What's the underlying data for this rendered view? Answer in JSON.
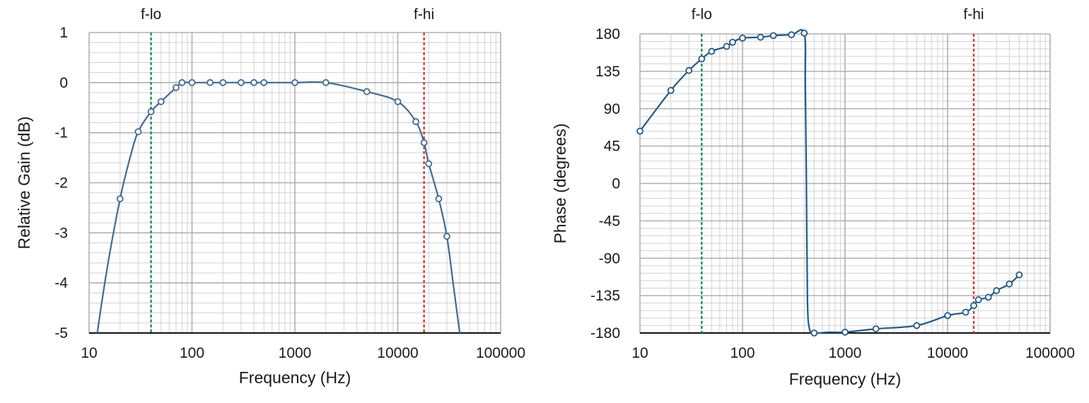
{
  "chart_data": [
    {
      "type": "line",
      "xlabel": "Frequency (Hz)",
      "ylabel": "Relative Gain (dB)",
      "xscale": "log",
      "xlim": [
        10,
        100000
      ],
      "ylim": [
        -5,
        1
      ],
      "xticks": [
        "10",
        "100",
        "1000",
        "10000",
        "100000"
      ],
      "yticks": [
        "1",
        "0",
        "-1",
        "-2",
        "-3",
        "-4",
        "-5"
      ],
      "ytick_values": [
        1,
        0,
        -1,
        -2,
        -3,
        -4,
        -5
      ],
      "grid": true,
      "line_color": "#3f6b96",
      "markers": [
        {
          "label": "f-lo",
          "x": 40,
          "color": "#1a8f5a"
        },
        {
          "label": "f-hi",
          "x": 18000,
          "color": "#e0352b"
        }
      ],
      "curve": {
        "x": [
          12,
          15,
          20,
          25,
          30,
          40,
          50,
          70,
          80,
          100,
          150,
          200,
          300,
          400,
          500,
          1000,
          2000,
          5000,
          10000,
          15000,
          18000,
          20000,
          25000,
          30000,
          35000,
          40000
        ],
        "y": [
          -5.0,
          -3.7,
          -2.32,
          -1.5,
          -0.98,
          -0.58,
          -0.38,
          -0.1,
          0.0,
          0.0,
          0.0,
          0.0,
          0.0,
          0.0,
          0.0,
          0.0,
          0.0,
          -0.18,
          -0.38,
          -0.78,
          -1.2,
          -1.62,
          -2.32,
          -3.07,
          -4.1,
          -5.0
        ]
      },
      "points": {
        "x": [
          20,
          30,
          40,
          50,
          70,
          80,
          100,
          150,
          200,
          300,
          400,
          500,
          1000,
          2000,
          5000,
          10000,
          15000,
          18000,
          20000,
          25000,
          30000
        ],
        "y": [
          -2.32,
          -0.98,
          -0.58,
          -0.38,
          -0.1,
          0.0,
          0.0,
          0.0,
          0.0,
          0.0,
          0.0,
          0.0,
          0.0,
          0.0,
          -0.18,
          -0.38,
          -0.78,
          -1.2,
          -1.62,
          -2.32,
          -3.07
        ]
      }
    },
    {
      "type": "line",
      "xlabel": "Frequency (Hz)",
      "ylabel": "Phase (degrees)",
      "xscale": "log",
      "xlim": [
        10,
        100000
      ],
      "ylim": [
        -180,
        180
      ],
      "xticks": [
        "10",
        "100",
        "1000",
        "10000",
        "100000"
      ],
      "yticks": [
        "180",
        "135",
        "90",
        "45",
        "0",
        "-45",
        "-90",
        "-135",
        "-180"
      ],
      "ytick_values": [
        180,
        135,
        90,
        45,
        0,
        -45,
        -90,
        -135,
        -180
      ],
      "grid": true,
      "line_color": "#1f5a8a",
      "markers": [
        {
          "label": "f-lo",
          "x": 40,
          "color": "#1a8f5a"
        },
        {
          "label": "f-hi",
          "x": 18000,
          "color": "#e0352b"
        }
      ],
      "curve": {
        "x": [
          10,
          20,
          30,
          40,
          50,
          70,
          80,
          100,
          150,
          200,
          300,
          400,
          410,
          420,
          430,
          450,
          500,
          700,
          1000,
          2000,
          5000,
          10000,
          15000,
          18000,
          20000,
          25000,
          30000,
          40000,
          50000
        ],
        "y": [
          63,
          112,
          136,
          150,
          159,
          165,
          170,
          175,
          176,
          178,
          179,
          181,
          120,
          0,
          -140,
          -175,
          -180,
          -179,
          -179,
          -175,
          -171,
          -159,
          -155,
          -147,
          -140,
          -137,
          -129,
          -121,
          -110
        ]
      },
      "points": {
        "x": [
          10,
          20,
          30,
          40,
          50,
          70,
          80,
          100,
          150,
          200,
          300,
          400,
          500,
          1000,
          2000,
          5000,
          10000,
          15000,
          18000,
          20000,
          25000,
          30000,
          40000,
          50000
        ],
        "y": [
          63,
          112,
          136,
          150,
          159,
          165,
          170,
          175,
          176,
          178,
          179,
          181,
          -180,
          -179,
          -175,
          -171,
          -159,
          -155,
          -147,
          -140,
          -137,
          -129,
          -121,
          -110
        ]
      }
    }
  ]
}
